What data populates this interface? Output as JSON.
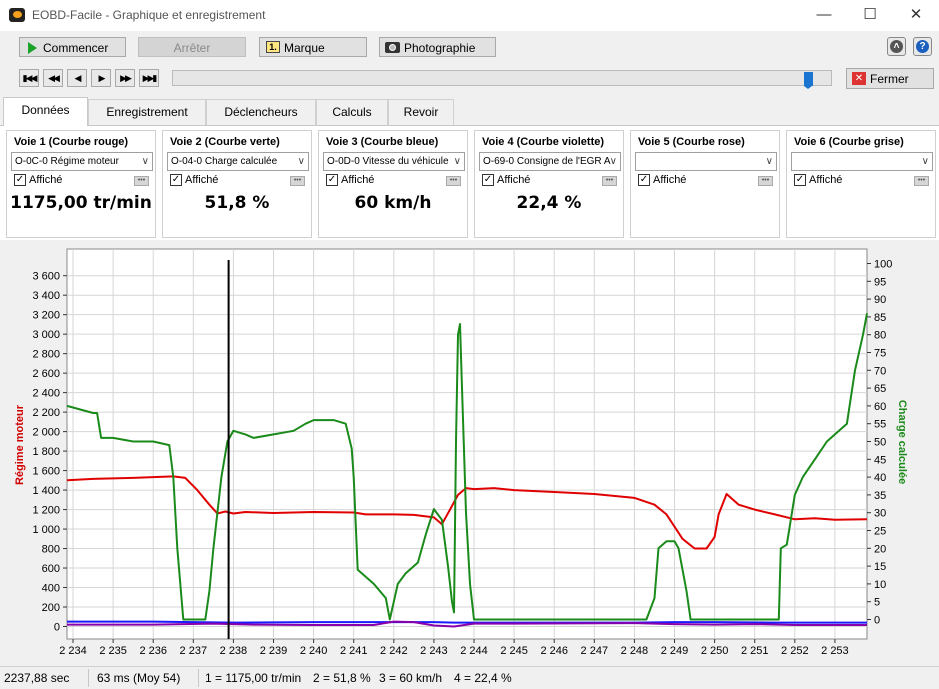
{
  "window": {
    "title": "EOBD-Facile - Graphique et enregistrement",
    "minimize_icon": "minimize-icon",
    "maximize_icon": "maximize-icon",
    "close_icon": "close-icon"
  },
  "toolbar": {
    "commencer": "Commencer",
    "arreter": "Arrêter",
    "marque": "Marque",
    "marque_icon_text": "1.",
    "photographie": "Photographie"
  },
  "fermer": "Fermer",
  "tabs": [
    "Données",
    "Enregistrement",
    "Déclencheurs",
    "Calculs",
    "Revoir"
  ],
  "active_tab": 0,
  "slider_position": 0.97,
  "voies": [
    {
      "title": "Voie 1 (Courbe rouge)",
      "selected": "O-0C-0 Régime moteur",
      "checkbox": "Affiché",
      "checked": true,
      "value": "1175,00 tr/min"
    },
    {
      "title": "Voie 2 (Courbe verte)",
      "selected": "O-04-0 Charge calculée",
      "checkbox": "Affiché",
      "checked": true,
      "value": "51,8 %"
    },
    {
      "title": "Voie 3 (Courbe bleue)",
      "selected": "O-0D-0 Vitesse du véhicule",
      "checkbox": "Affiché",
      "checked": true,
      "value": "60 km/h"
    },
    {
      "title": "Voie 4 (Courbe violette)",
      "selected": "O-69-0 Consigne de l'EGR A",
      "checkbox": "Affiché",
      "checked": true,
      "value": "22,4 %"
    },
    {
      "title": "Voie 5 (Courbe rose)",
      "selected": "",
      "checkbox": "Affiché",
      "checked": true,
      "value": ""
    },
    {
      "title": "Voie 6 (Courbe grise)",
      "selected": "",
      "checkbox": "Affiché",
      "checked": true,
      "value": ""
    }
  ],
  "chart_data": {
    "type": "line",
    "ylabel_left": "Régime moteur",
    "ylabel_right": "Charge calculée",
    "y_left_ticks": [
      "0",
      "200",
      "400",
      "600",
      "800",
      "1 000",
      "1 200",
      "1 400",
      "1 600",
      "1 800",
      "2 000",
      "2 200",
      "2 400",
      "2 600",
      "2 800",
      "3 000",
      "3 200",
      "3 400",
      "3 600"
    ],
    "y_left_range": [
      0,
      3600
    ],
    "y_right_ticks": [
      "0",
      "5",
      "10",
      "15",
      "20",
      "25",
      "30",
      "35",
      "40",
      "45",
      "50",
      "55",
      "60",
      "65",
      "70",
      "75",
      "80",
      "85",
      "90",
      "95",
      "100"
    ],
    "y_right_range": [
      0,
      100
    ],
    "x_ticks": [
      "2 234",
      "2 235",
      "2 236",
      "2 237",
      "2 238",
      "2 239",
      "2 240",
      "2 241",
      "2 242",
      "2 243",
      "2 244",
      "2 245",
      "2 246",
      "2 247",
      "2 248",
      "2 249",
      "2 250",
      "2 251",
      "2 252",
      "2 253"
    ],
    "x_range": [
      2233.85,
      2253.8
    ],
    "grid": true,
    "cursor_x": 2237.88,
    "series": [
      {
        "color": "#e00000",
        "axis": "left",
        "points": [
          [
            2233.85,
            1500
          ],
          [
            2234.5,
            1515
          ],
          [
            2235.5,
            1525
          ],
          [
            2236.5,
            1540
          ],
          [
            2236.8,
            1525
          ],
          [
            2237.1,
            1400
          ],
          [
            2237.4,
            1250
          ],
          [
            2237.6,
            1160
          ],
          [
            2237.8,
            1180
          ],
          [
            2238.0,
            1160
          ],
          [
            2238.3,
            1175
          ],
          [
            2239.0,
            1165
          ],
          [
            2240.0,
            1175
          ],
          [
            2241.0,
            1170
          ],
          [
            2241.3,
            1150
          ],
          [
            2242.0,
            1150
          ],
          [
            2242.5,
            1145
          ],
          [
            2243.0,
            1120
          ],
          [
            2243.2,
            1050
          ],
          [
            2243.4,
            1200
          ],
          [
            2243.6,
            1350
          ],
          [
            2243.8,
            1420
          ],
          [
            2244.0,
            1410
          ],
          [
            2244.5,
            1420
          ],
          [
            2245.0,
            1400
          ],
          [
            2246.0,
            1380
          ],
          [
            2247.0,
            1360
          ],
          [
            2248.0,
            1320
          ],
          [
            2248.5,
            1250
          ],
          [
            2248.8,
            1150
          ],
          [
            2249.2,
            900
          ],
          [
            2249.5,
            800
          ],
          [
            2249.8,
            800
          ],
          [
            2250.0,
            920
          ],
          [
            2250.1,
            1150
          ],
          [
            2250.3,
            1360
          ],
          [
            2250.6,
            1250
          ],
          [
            2251.0,
            1200
          ],
          [
            2251.5,
            1150
          ],
          [
            2252.0,
            1100
          ],
          [
            2252.5,
            1110
          ],
          [
            2253.0,
            1095
          ],
          [
            2253.8,
            1100
          ]
        ]
      },
      {
        "color": "#1a8a1a",
        "axis": "right",
        "points": [
          [
            2233.85,
            60
          ],
          [
            2234.5,
            58
          ],
          [
            2234.6,
            58
          ],
          [
            2234.7,
            51
          ],
          [
            2235.0,
            51
          ],
          [
            2235.5,
            50
          ],
          [
            2236.0,
            50
          ],
          [
            2236.4,
            49
          ],
          [
            2236.5,
            40
          ],
          [
            2236.6,
            20
          ],
          [
            2236.75,
            0
          ],
          [
            2237.3,
            0
          ],
          [
            2237.4,
            8
          ],
          [
            2237.5,
            20
          ],
          [
            2237.7,
            40
          ],
          [
            2237.85,
            50
          ],
          [
            2238.0,
            53
          ],
          [
            2238.3,
            52
          ],
          [
            2238.5,
            51
          ],
          [
            2239.0,
            52
          ],
          [
            2239.5,
            53
          ],
          [
            2239.8,
            55
          ],
          [
            2240.0,
            56
          ],
          [
            2240.5,
            56
          ],
          [
            2240.8,
            55
          ],
          [
            2240.95,
            48
          ],
          [
            2241.0,
            40
          ],
          [
            2241.1,
            14
          ],
          [
            2241.3,
            12
          ],
          [
            2241.5,
            10
          ],
          [
            2241.8,
            6
          ],
          [
            2241.9,
            0
          ],
          [
            2242.0,
            5
          ],
          [
            2242.1,
            10
          ],
          [
            2242.3,
            13
          ],
          [
            2242.6,
            16
          ],
          [
            2242.8,
            24
          ],
          [
            2243.0,
            31
          ],
          [
            2243.2,
            28
          ],
          [
            2243.35,
            15
          ],
          [
            2243.45,
            5
          ],
          [
            2243.5,
            2
          ],
          [
            2243.55,
            50
          ],
          [
            2243.6,
            80
          ],
          [
            2243.65,
            83
          ],
          [
            2243.7,
            65
          ],
          [
            2243.8,
            30
          ],
          [
            2243.9,
            10
          ],
          [
            2244.0,
            0
          ],
          [
            2248.3,
            0
          ],
          [
            2248.5,
            6
          ],
          [
            2248.6,
            20
          ],
          [
            2248.8,
            22
          ],
          [
            2249.0,
            22
          ],
          [
            2249.1,
            20
          ],
          [
            2249.3,
            8
          ],
          [
            2249.4,
            0
          ],
          [
            2250.5,
            0
          ],
          [
            2251.0,
            0
          ],
          [
            2251.6,
            0
          ],
          [
            2251.65,
            20
          ],
          [
            2251.8,
            21
          ],
          [
            2252.0,
            35
          ],
          [
            2252.2,
            40
          ],
          [
            2252.5,
            45
          ],
          [
            2252.8,
            50
          ],
          [
            2253.0,
            52
          ],
          [
            2253.3,
            55
          ],
          [
            2253.5,
            70
          ],
          [
            2253.7,
            80
          ],
          [
            2253.8,
            86
          ]
        ]
      },
      {
        "color": "#1a1aff",
        "axis": "left",
        "points": [
          [
            2233.85,
            50
          ],
          [
            2236.0,
            50
          ],
          [
            2238.0,
            40
          ],
          [
            2240.0,
            45
          ],
          [
            2243.0,
            45
          ],
          [
            2243.5,
            40
          ],
          [
            2244.0,
            40
          ],
          [
            2248.0,
            40
          ],
          [
            2249.0,
            45
          ],
          [
            2250.0,
            45
          ],
          [
            2251.5,
            40
          ],
          [
            2253.8,
            40
          ]
        ]
      },
      {
        "color": "#8800aa",
        "axis": "left",
        "points": [
          [
            2233.85,
            20
          ],
          [
            2236.0,
            20
          ],
          [
            2237.5,
            30
          ],
          [
            2238.5,
            20
          ],
          [
            2240.0,
            15
          ],
          [
            2241.5,
            15
          ],
          [
            2242.0,
            50
          ],
          [
            2242.5,
            45
          ],
          [
            2243.0,
            10
          ],
          [
            2243.5,
            0
          ],
          [
            2244.0,
            30
          ],
          [
            2245.0,
            30
          ],
          [
            2248.0,
            35
          ],
          [
            2249.0,
            25
          ],
          [
            2250.0,
            20
          ],
          [
            2251.0,
            25
          ],
          [
            2252.0,
            15
          ],
          [
            2253.8,
            15
          ]
        ]
      }
    ]
  },
  "status": {
    "time": "2237,88 sec",
    "interval": "63 ms (Moy 54)",
    "v1": "1 = 1175,00 tr/min",
    "v2": "2 = 51,8 %",
    "v3": "3 = 60 km/h",
    "v4": "4 = 22,4 %"
  }
}
